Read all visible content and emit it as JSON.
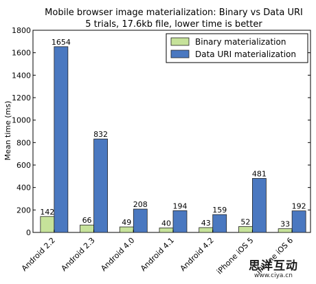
{
  "chart_data": {
    "type": "bar",
    "title": "Mobile browser image materialization: Binary vs Data URI",
    "subtitle": "5 trials, 17.6kb file, lower time is better",
    "xlabel": "",
    "ylabel": "Mean time (ms)",
    "ylim": [
      0,
      1800
    ],
    "yticks": [
      0,
      200,
      400,
      600,
      800,
      1000,
      1200,
      1400,
      1600,
      1800
    ],
    "grid": false,
    "legend_position": "top-right",
    "categories": [
      "Android 2.2",
      "Android 2.3",
      "Android 4.0",
      "Android 4.1",
      "Android 4.2",
      "iPhone iOS 5",
      "iPhone iOS 6"
    ],
    "series": [
      {
        "name": "Binary materialization",
        "color": "#c6e29a",
        "values": [
          142,
          66,
          49,
          40,
          43,
          52,
          33
        ]
      },
      {
        "name": "Data URI materialization",
        "color": "#4a78c0",
        "values": [
          1654,
          832,
          208,
          194,
          159,
          481,
          192
        ]
      }
    ]
  },
  "watermark": {
    "text": "思洋互动",
    "url": "www.ciya.cn"
  }
}
